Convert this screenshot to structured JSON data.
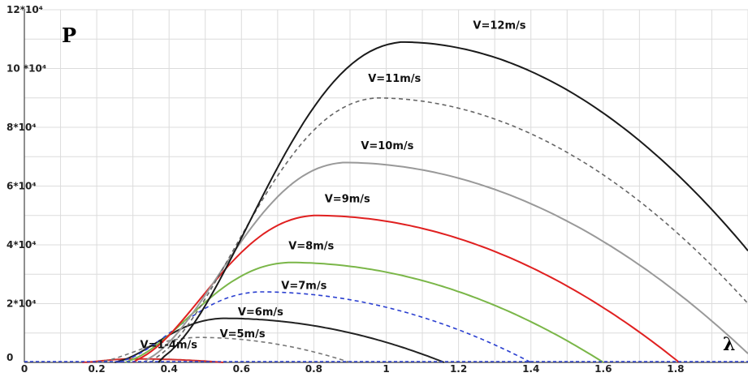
{
  "chart_data": {
    "type": "line",
    "y_axis_label": "P",
    "x_axis_label": "λ",
    "xlim": [
      0,
      2.0
    ],
    "ylim": [
      0,
      120000
    ],
    "x_ticks": [
      {
        "value": 0,
        "label": "0"
      },
      {
        "value": 0.2,
        "label": "0.2"
      },
      {
        "value": 0.4,
        "label": "0.4"
      },
      {
        "value": 0.6,
        "label": "0.6"
      },
      {
        "value": 0.8,
        "label": "0.8"
      },
      {
        "value": 1.0,
        "label": "1"
      },
      {
        "value": 1.2,
        "label": "1.2"
      },
      {
        "value": 1.4,
        "label": "1.4"
      },
      {
        "value": 1.6,
        "label": "1.6"
      },
      {
        "value": 1.8,
        "label": "1.8"
      }
    ],
    "y_ticks": [
      {
        "value": 0,
        "label": "0"
      },
      {
        "value": 20000,
        "label": "2*10⁴"
      },
      {
        "value": 40000,
        "label": "4*10⁴"
      },
      {
        "value": 60000,
        "label": "6*10⁴"
      },
      {
        "value": 80000,
        "label": "8*10⁴"
      },
      {
        "value": 100000,
        "label": "10 *10⁴"
      },
      {
        "value": 120000,
        "label": "12*10⁴"
      }
    ],
    "grid": true,
    "series": [
      {
        "name": "V=1-4m/s",
        "color": "#d03030",
        "dash": "solid",
        "start": 0.16,
        "peak_x": 0.3,
        "peak_y": 1200,
        "end": 0.55,
        "label_x": 0.32,
        "label_y": 4800
      },
      {
        "name": "V=5m/s",
        "color": "#777777",
        "dash": "dashed",
        "start": 0.2,
        "peak_x": 0.48,
        "peak_y": 8500,
        "end": 0.9,
        "label_x": 0.54,
        "label_y": 8500
      },
      {
        "name": "V=6m/s",
        "color": "#222222",
        "dash": "solid",
        "start": 0.25,
        "peak_x": 0.55,
        "peak_y": 15000,
        "end": 1.16,
        "label_x": 0.59,
        "label_y": 16000
      },
      {
        "name": "V=7m/s",
        "color": "#2a3fd0",
        "dash": "dashed",
        "start": 0.26,
        "peak_x": 0.65,
        "peak_y": 24000,
        "end": 1.4,
        "label_x": 0.71,
        "label_y": 25000
      },
      {
        "name": "V=8m/s",
        "color": "#7ab648",
        "dash": "solid",
        "start": 0.28,
        "peak_x": 0.73,
        "peak_y": 34000,
        "end": 1.6,
        "label_x": 0.73,
        "label_y": 38500
      },
      {
        "name": "V=9m/s",
        "color": "#e02020",
        "dash": "solid",
        "start": 0.3,
        "peak_x": 0.8,
        "peak_y": 50000,
        "end": 1.81,
        "label_x": 0.83,
        "label_y": 54500
      },
      {
        "name": "V=10m/s",
        "color": "#999999",
        "dash": "solid",
        "start": 0.33,
        "peak_x": 0.88,
        "peak_y": 68000,
        "end": 2.0,
        "end_y": 3000,
        "label_x": 0.93,
        "label_y": 72500
      },
      {
        "name": "V=11m/s",
        "color": "#666666",
        "dash": "dashed",
        "start": 0.35,
        "peak_x": 0.97,
        "peak_y": 90000,
        "end": 2.0,
        "end_y": 20000,
        "label_x": 0.95,
        "label_y": 95500
      },
      {
        "name": "V=12m/s",
        "color": "#1a1a1a",
        "dash": "solid",
        "start": 0.37,
        "peak_x": 1.04,
        "peak_y": 109000,
        "end": 2.0,
        "end_y": 38000,
        "label_x": 1.24,
        "label_y": 113500
      }
    ]
  }
}
